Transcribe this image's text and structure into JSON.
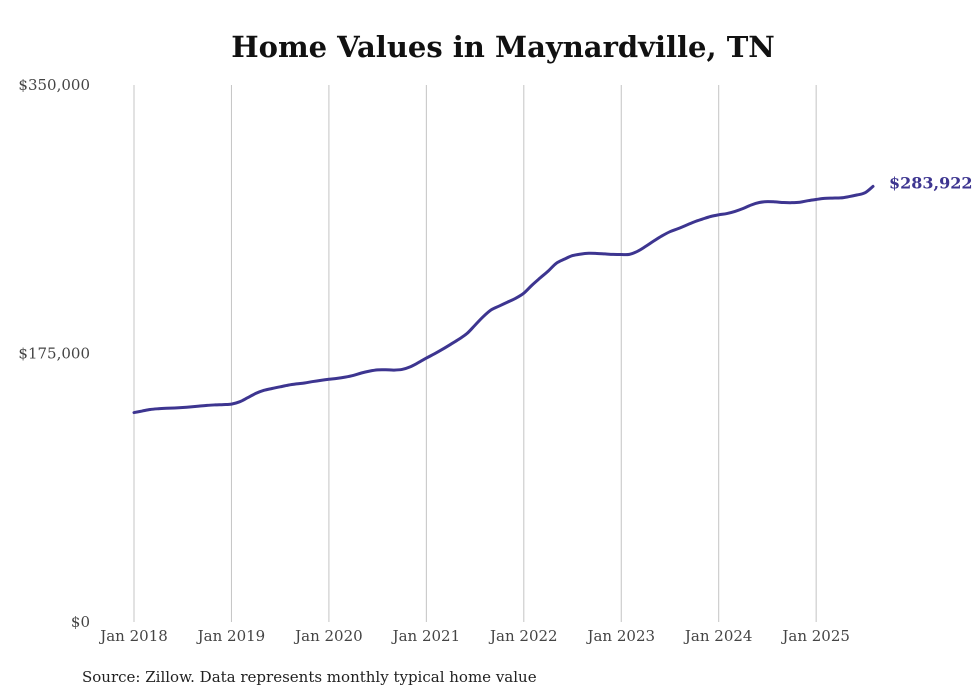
{
  "chart_data": {
    "type": "line",
    "title": "Home Values in Maynardville, TN",
    "source": "Source: Zillow. Data represents monthly typical home value",
    "xlabel": "",
    "ylabel": "",
    "x_ticks": [
      "Jan 2018",
      "Jan 2019",
      "Jan 2020",
      "Jan 2021",
      "Jan 2022",
      "Jan 2023",
      "Jan 2024",
      "Jan 2025"
    ],
    "y_ticks": [
      "$0",
      "$175,000",
      "$350,000"
    ],
    "y_tick_values": [
      0,
      175000,
      350000
    ],
    "ylim": [
      0,
      350000
    ],
    "xlim": [
      "2018-01",
      "2025-08"
    ],
    "grid": "vertical",
    "line_color": "#3d3590",
    "end_label": "$283,922",
    "series": [
      {
        "x": [
          "2018-01",
          "2018-02",
          "2018-03",
          "2018-04",
          "2018-05",
          "2018-06",
          "2018-07",
          "2018-08",
          "2018-09",
          "2018-10",
          "2018-11",
          "2018-12",
          "2019-01",
          "2019-02",
          "2019-03",
          "2019-04",
          "2019-05",
          "2019-06",
          "2019-07",
          "2019-08",
          "2019-09",
          "2019-10",
          "2019-11",
          "2019-12",
          "2020-01",
          "2020-02",
          "2020-03",
          "2020-04",
          "2020-05",
          "2020-06",
          "2020-07",
          "2020-08",
          "2020-09",
          "2020-10",
          "2020-11",
          "2020-12",
          "2021-01",
          "2021-02",
          "2021-03",
          "2021-04",
          "2021-05",
          "2021-06",
          "2021-07",
          "2021-08",
          "2021-09",
          "2021-10",
          "2021-11",
          "2021-12",
          "2022-01",
          "2022-02",
          "2022-03",
          "2022-04",
          "2022-05",
          "2022-06",
          "2022-07",
          "2022-08",
          "2022-09",
          "2022-10",
          "2022-11",
          "2022-12",
          "2023-01",
          "2023-02",
          "2023-03",
          "2023-04",
          "2023-05",
          "2023-06",
          "2023-07",
          "2023-08",
          "2023-09",
          "2023-10",
          "2023-11",
          "2023-12",
          "2024-01",
          "2024-02",
          "2024-03",
          "2024-04",
          "2024-05",
          "2024-06",
          "2024-07",
          "2024-08",
          "2024-09",
          "2024-10",
          "2024-11",
          "2024-12",
          "2025-01",
          "2025-02",
          "2025-03",
          "2025-04",
          "2025-05",
          "2025-06",
          "2025-07",
          "2025-08"
        ],
        "values": [
          136500,
          137500,
          138500,
          139000,
          139300,
          139500,
          139800,
          140200,
          140700,
          141200,
          141500,
          141700,
          142000,
          143500,
          146200,
          149000,
          151000,
          152200,
          153300,
          154400,
          155200,
          155800,
          156700,
          157500,
          158200,
          158800,
          159600,
          160700,
          162300,
          163500,
          164300,
          164400,
          164200,
          164600,
          166300,
          169000,
          172000,
          174800,
          177800,
          181000,
          184300,
          188000,
          193500,
          199000,
          203500,
          206000,
          208500,
          211000,
          214300,
          219500,
          224200,
          228700,
          233800,
          236500,
          238800,
          239800,
          240300,
          240200,
          239900,
          239600,
          239500,
          239600,
          241600,
          244800,
          248300,
          251600,
          254400,
          256400,
          258600,
          260800,
          262600,
          264300,
          265400,
          266200,
          267600,
          269500,
          271800,
          273400,
          274000,
          273800,
          273400,
          273300,
          273600,
          274600,
          275400,
          276100,
          276300,
          276400,
          277200,
          278300,
          279700,
          283922
        ]
      }
    ]
  }
}
